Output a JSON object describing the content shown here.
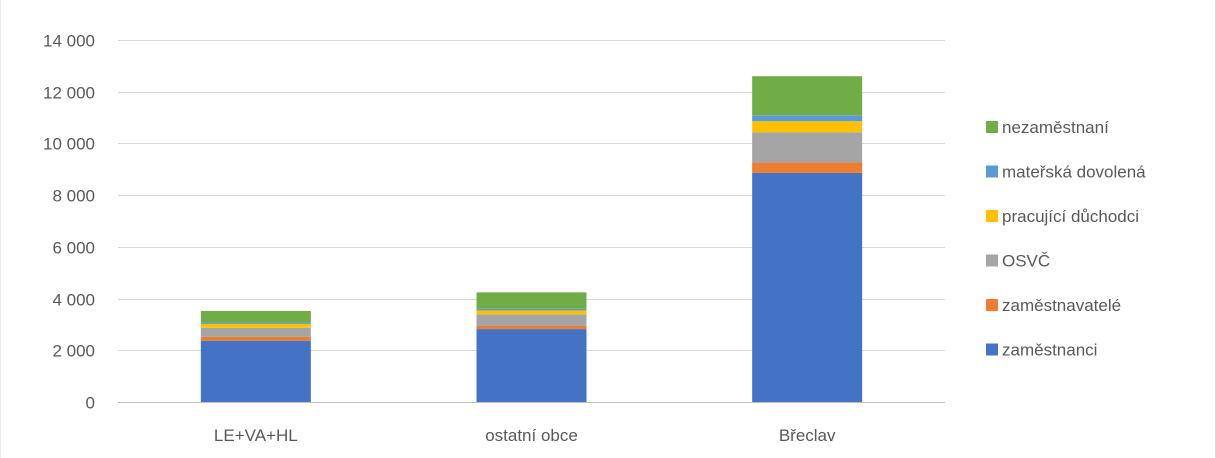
{
  "chart_data": {
    "type": "bar",
    "stacked": true,
    "categories": [
      "LE+VA+HL",
      "ostatní obce",
      "Břeclav"
    ],
    "series": [
      {
        "name": "zaměstnanci",
        "color": "#4472C4",
        "values": [
          2370,
          2820,
          8860
        ]
      },
      {
        "name": "zaměstnavatelé",
        "color": "#ED7D31",
        "values": [
          150,
          120,
          400
        ]
      },
      {
        "name": "OSVČ",
        "color": "#A5A5A5",
        "values": [
          350,
          450,
          1170
        ]
      },
      {
        "name": "pracující důchodci",
        "color": "#FFC000",
        "values": [
          150,
          150,
          430
        ]
      },
      {
        "name": "mateřská dovolená",
        "color": "#5B9BD5",
        "values": [
          50,
          70,
          230
        ]
      },
      {
        "name": "nezaměstnaní",
        "color": "#70AD47",
        "values": [
          450,
          630,
          1510
        ]
      }
    ],
    "ylim": [
      0,
      14000
    ],
    "yticks": [
      0,
      2000,
      4000,
      6000,
      8000,
      10000,
      12000,
      14000
    ],
    "ytick_labels": [
      "0",
      "2 000",
      "4 000",
      "6 000",
      "8 000",
      "10 000",
      "12 000",
      "14 000"
    ],
    "grid": true,
    "legend_position": "right",
    "xlabel": "",
    "ylabel": ""
  }
}
